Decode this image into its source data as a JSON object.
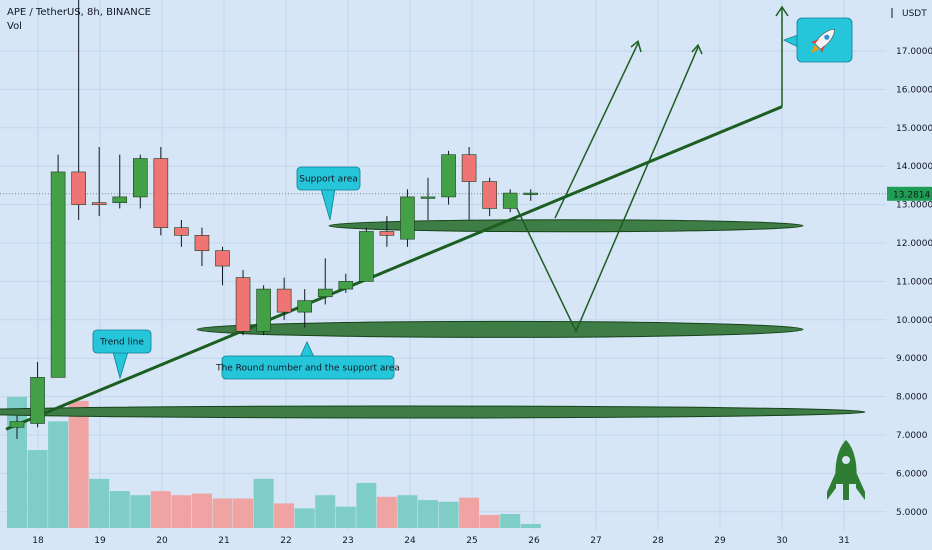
{
  "header": {
    "symbol": "APE / TetherUS, 8h, BINANCE",
    "vol_label": "Vol",
    "currency": "USDT"
  },
  "chart_data": {
    "type": "candlestick",
    "price_axis": {
      "ticks": [
        {
          "value": 17,
          "label": "17.0000"
        },
        {
          "value": 16,
          "label": "16.0000"
        },
        {
          "value": 15,
          "label": "15.0000"
        },
        {
          "value": 14,
          "label": "14.0000"
        },
        {
          "value": 13,
          "label": "13.0000"
        },
        {
          "value": 12,
          "label": "12.0000"
        },
        {
          "value": 11,
          "label": "11.0000"
        },
        {
          "value": 10,
          "label": "10.0000"
        },
        {
          "value": 9,
          "label": "9.0000"
        },
        {
          "value": 8,
          "label": "8.0000"
        },
        {
          "value": 7,
          "label": "7.0000"
        },
        {
          "value": 6,
          "label": "6.0000"
        },
        {
          "value": 5,
          "label": "5.0000"
        }
      ],
      "current_price": 13.2814,
      "current_price_label": "13.2814"
    },
    "date_axis": {
      "ticks": [
        {
          "day": 18,
          "label": "18"
        },
        {
          "day": 19,
          "label": "19"
        },
        {
          "day": 20,
          "label": "20"
        },
        {
          "day": 21,
          "label": "21"
        },
        {
          "day": 22,
          "label": "22"
        },
        {
          "day": 23,
          "label": "23"
        },
        {
          "day": 24,
          "label": "24"
        },
        {
          "day": 25,
          "label": "25"
        },
        {
          "day": 26,
          "label": "26"
        },
        {
          "day": 27,
          "label": "27"
        },
        {
          "day": 28,
          "label": "28"
        },
        {
          "day": 29,
          "label": "29"
        },
        {
          "day": 30,
          "label": "30"
        },
        {
          "day": 31,
          "label": "31"
        }
      ]
    },
    "candles": [
      {
        "open": 7.2,
        "close": 7.35,
        "high": 7.5,
        "low": 6.9
      },
      {
        "open": 7.3,
        "close": 8.5,
        "high": 8.9,
        "low": 7.2
      },
      {
        "open": 8.5,
        "close": 13.85,
        "high": 14.3,
        "low": 8.5
      },
      {
        "open": 13.85,
        "close": 13.0,
        "high": 18.5,
        "low": 12.6
      },
      {
        "open": 13.05,
        "close": 13.0,
        "high": 14.5,
        "low": 12.7
      },
      {
        "open": 13.05,
        "close": 13.2,
        "high": 14.3,
        "low": 12.9
      },
      {
        "open": 13.2,
        "close": 14.2,
        "high": 14.3,
        "low": 12.9
      },
      {
        "open": 14.2,
        "close": 12.4,
        "high": 14.5,
        "low": 12.2
      },
      {
        "open": 12.4,
        "close": 12.2,
        "high": 12.6,
        "low": 11.9
      },
      {
        "open": 12.2,
        "close": 11.8,
        "high": 12.4,
        "low": 11.4
      },
      {
        "open": 11.8,
        "close": 11.4,
        "high": 11.9,
        "low": 10.9
      },
      {
        "open": 11.1,
        "close": 9.7,
        "high": 11.3,
        "low": 9.6
      },
      {
        "open": 9.7,
        "close": 10.8,
        "high": 10.9,
        "low": 9.6
      },
      {
        "open": 10.8,
        "close": 10.2,
        "high": 11.1,
        "low": 10.0
      },
      {
        "open": 10.2,
        "close": 10.5,
        "high": 10.8,
        "low": 9.8
      },
      {
        "open": 10.6,
        "close": 10.8,
        "high": 11.6,
        "low": 10.4
      },
      {
        "open": 10.8,
        "close": 11.0,
        "high": 11.2,
        "low": 10.7
      },
      {
        "open": 11.0,
        "close": 12.3,
        "high": 12.4,
        "low": 11.0
      },
      {
        "open": 12.3,
        "close": 12.2,
        "high": 12.7,
        "low": 11.9
      },
      {
        "open": 12.1,
        "close": 13.2,
        "high": 13.4,
        "low": 11.9
      },
      {
        "open": 13.2,
        "close": 13.2,
        "high": 13.7,
        "low": 12.6
      },
      {
        "open": 13.2,
        "close": 14.3,
        "high": 14.4,
        "low": 13.0
      },
      {
        "open": 14.3,
        "close": 13.6,
        "high": 14.5,
        "low": 12.6
      },
      {
        "open": 13.6,
        "close": 12.9,
        "high": 13.7,
        "low": 12.7
      },
      {
        "open": 12.9,
        "close": 13.3,
        "high": 13.4,
        "low": 12.8
      },
      {
        "open": 13.3,
        "close": 13.3,
        "high": 13.4,
        "low": 13.1
      }
    ],
    "volume": [
      {
        "value": 1.6,
        "dir": "up"
      },
      {
        "value": 0.95,
        "dir": "up"
      },
      {
        "value": 1.3,
        "dir": "up"
      },
      {
        "value": 1.55,
        "dir": "down"
      },
      {
        "value": 0.6,
        "dir": "up"
      },
      {
        "value": 0.45,
        "dir": "up"
      },
      {
        "value": 0.4,
        "dir": "up"
      },
      {
        "value": 0.45,
        "dir": "down"
      },
      {
        "value": 0.4,
        "dir": "down"
      },
      {
        "value": 0.42,
        "dir": "down"
      },
      {
        "value": 0.36,
        "dir": "down"
      },
      {
        "value": 0.36,
        "dir": "down"
      },
      {
        "value": 0.6,
        "dir": "up"
      },
      {
        "value": 0.3,
        "dir": "down"
      },
      {
        "value": 0.24,
        "dir": "up"
      },
      {
        "value": 0.4,
        "dir": "up"
      },
      {
        "value": 0.26,
        "dir": "up"
      },
      {
        "value": 0.55,
        "dir": "up"
      },
      {
        "value": 0.38,
        "dir": "down"
      },
      {
        "value": 0.4,
        "dir": "up"
      },
      {
        "value": 0.34,
        "dir": "up"
      },
      {
        "value": 0.32,
        "dir": "up"
      },
      {
        "value": 0.37,
        "dir": "down"
      },
      {
        "value": 0.16,
        "dir": "down"
      },
      {
        "value": 0.17,
        "dir": "up"
      },
      {
        "value": 0.05,
        "dir": "up"
      }
    ],
    "annotations": {
      "support_area": "Support area",
      "trend_line": "Trend line",
      "round_number": "The Round number and the support area"
    }
  },
  "colors": {
    "up": "#43a047",
    "down": "#ef7575",
    "vol_up": "#7fcdc7",
    "vol_down": "#f0a3a3",
    "drawing": "#1b5e20",
    "ellipse_fill": "#3e7d45",
    "callout": "#26c6da",
    "background": "#d6e6f7",
    "price_badge": "#1e9e55"
  }
}
